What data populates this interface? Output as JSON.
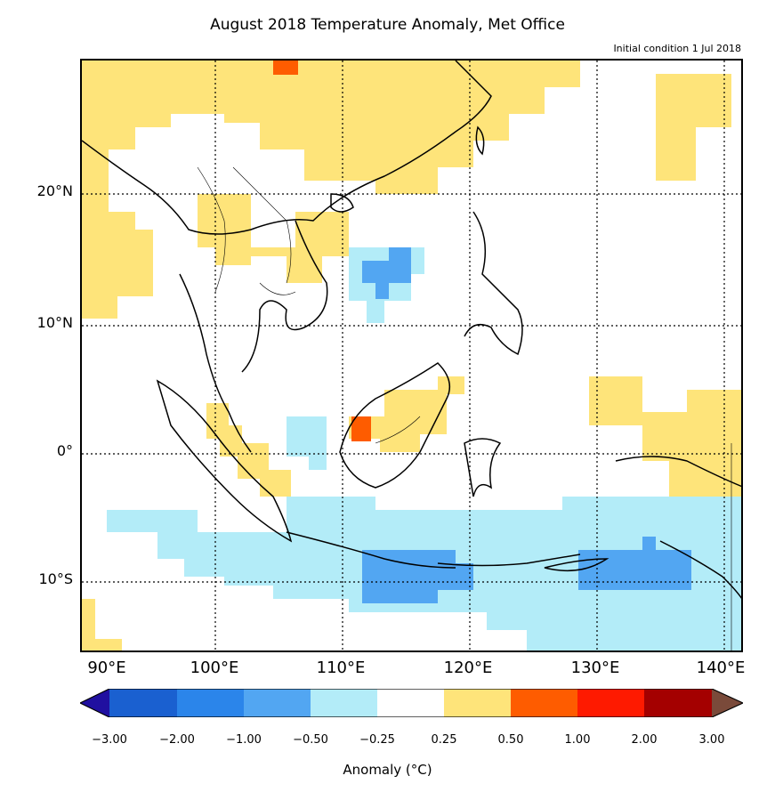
{
  "title": "August 2018 Temperature Anomaly, Met Office",
  "subtitle": "Initial condition 1 Jul 2018",
  "axes": {
    "lat_labels": [
      "20°N",
      "10°N",
      "0°",
      "10°S"
    ],
    "lon_labels": [
      "90°E",
      "100°E",
      "110°E",
      "120°E",
      "130°E",
      "140°E"
    ]
  },
  "colorbar": {
    "label": "Anomaly (°C)",
    "ticks": [
      "−3.00",
      "−2.00",
      "−1.00",
      "−0.50",
      "−0.25",
      "0.25",
      "0.50",
      "1.00",
      "2.00",
      "3.00"
    ],
    "colors": {
      "below": "#2010a0",
      "bin_-3_-2": "#1a60d0",
      "bin_-2_-1": "#2b85ea",
      "bin_-1_-0.5": "#52a6f2",
      "bin_-0.5_-0.25": "#b3ecf8",
      "bin_-0.25_0.25": "#ffffff",
      "bin_0.25_0.5": "#fee47a",
      "bin_0.5_1": "#fe5c00",
      "bin_1_2": "#fe1a00",
      "bin_2_3": "#a40000",
      "above": "#7a4a3a"
    }
  }
}
